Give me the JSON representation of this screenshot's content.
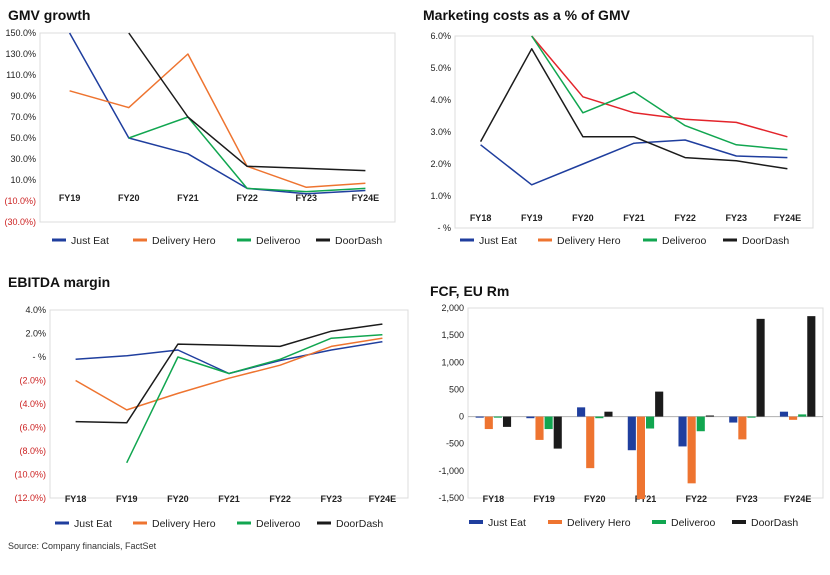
{
  "source": "Source: Company financials, FactSet",
  "colors": {
    "Just Eat": "#1f3e9e",
    "Delivery Hero": "#ee7430",
    "Deliveroo": "#11a650",
    "DoorDash": "#1b1b1b",
    "Marketing extra": "#e3242b",
    "negative_tick": "#cc2222"
  },
  "chart_data": [
    {
      "id": "gmv",
      "type": "line",
      "title": "GMV growth",
      "categories": [
        "FY19",
        "FY20",
        "FY21",
        "FY22",
        "FY23",
        "FY24E"
      ],
      "ylim": [
        -30,
        150
      ],
      "yticks": [
        "150.0%",
        "130.0%",
        "110.0%",
        "90.0%",
        "70.0%",
        "50.0%",
        "30.0%",
        "10.0%",
        "(10.0%)",
        "(30.0%)"
      ],
      "series": [
        {
          "name": "Just Eat",
          "values": [
            150,
            50,
            35,
            2,
            -3,
            0
          ]
        },
        {
          "name": "Delivery Hero",
          "values": [
            95,
            79,
            130,
            23,
            3,
            7
          ]
        },
        {
          "name": "Deliveroo",
          "values": [
            null,
            50,
            70,
            2,
            -1,
            2
          ]
        },
        {
          "name": "DoorDash",
          "values": [
            null,
            150,
            70,
            23,
            21,
            19
          ]
        }
      ],
      "legend": "bottom"
    },
    {
      "id": "marketing",
      "type": "line",
      "title": "Marketing costs as a % of GMV",
      "categories": [
        "FY18",
        "FY19",
        "FY20",
        "FY21",
        "FY22",
        "FY23",
        "FY24E"
      ],
      "ylim": [
        0,
        6
      ],
      "yticks": [
        "6.0%",
        "5.0%",
        "4.0%",
        "3.0%",
        "2.0%",
        "1.0%",
        "-   %"
      ],
      "series": [
        {
          "name": "Just Eat",
          "values": [
            2.6,
            1.35,
            2.0,
            2.65,
            2.75,
            2.25,
            2.2
          ]
        },
        {
          "name": "Delivery Hero",
          "values": [
            null,
            6.0,
            4.1,
            3.6,
            3.4,
            3.3,
            2.85
          ]
        },
        {
          "name": "Deliveroo",
          "values": [
            null,
            6.0,
            3.6,
            4.25,
            3.2,
            2.6,
            2.45
          ]
        },
        {
          "name": "DoorDash",
          "values": [
            2.7,
            5.6,
            2.85,
            2.85,
            2.2,
            2.1,
            1.85
          ]
        }
      ],
      "legend": "bottom"
    },
    {
      "id": "ebitda",
      "type": "line",
      "title": "EBITDA margin",
      "categories": [
        "FY18",
        "FY19",
        "FY20",
        "FY21",
        "FY22",
        "FY23",
        "FY24E"
      ],
      "ylim": [
        -12,
        4
      ],
      "yticks": [
        "4.0%",
        "2.0%",
        "-   %",
        "(2.0%)",
        "(4.0%)",
        "(6.0%)",
        "(8.0%)",
        "(10.0%)",
        "(12.0%)"
      ],
      "series": [
        {
          "name": "Just Eat",
          "values": [
            -0.2,
            0.1,
            0.6,
            -1.4,
            -0.3,
            0.6,
            1.3
          ]
        },
        {
          "name": "Delivery Hero",
          "values": [
            -2.0,
            -4.5,
            -3.1,
            -1.8,
            -0.7,
            0.9,
            1.6
          ]
        },
        {
          "name": "Deliveroo",
          "values": [
            null,
            -9.0,
            0.0,
            -1.4,
            -0.2,
            1.6,
            1.9
          ]
        },
        {
          "name": "DoorDash",
          "values": [
            -5.5,
            -5.6,
            1.1,
            1.0,
            0.9,
            2.2,
            2.8
          ]
        }
      ],
      "legend": "bottom"
    },
    {
      "id": "fcf",
      "type": "bar",
      "title": "FCF, EU Rm",
      "categories": [
        "FY18",
        "FY19",
        "FY20",
        "FY21",
        "FY22",
        "FY23",
        "FY24E"
      ],
      "ylim": [
        -1500,
        2000
      ],
      "yticks": [
        "2,000",
        "1,500",
        "1,000",
        "500",
        "0",
        "-500",
        "-1,000",
        "-1,500"
      ],
      "series": [
        {
          "name": "Just Eat",
          "values": [
            -20,
            -30,
            170,
            -620,
            -550,
            -110,
            90
          ]
        },
        {
          "name": "Delivery Hero",
          "values": [
            -230,
            -430,
            -950,
            -1520,
            -1230,
            -420,
            -60
          ]
        },
        {
          "name": "Deliveroo",
          "values": [
            -20,
            -230,
            -30,
            -220,
            -270,
            -20,
            40
          ]
        },
        {
          "name": "DoorDash",
          "values": [
            -190,
            -590,
            90,
            460,
            20,
            1800,
            1850
          ]
        }
      ],
      "legend": "bottom"
    }
  ]
}
